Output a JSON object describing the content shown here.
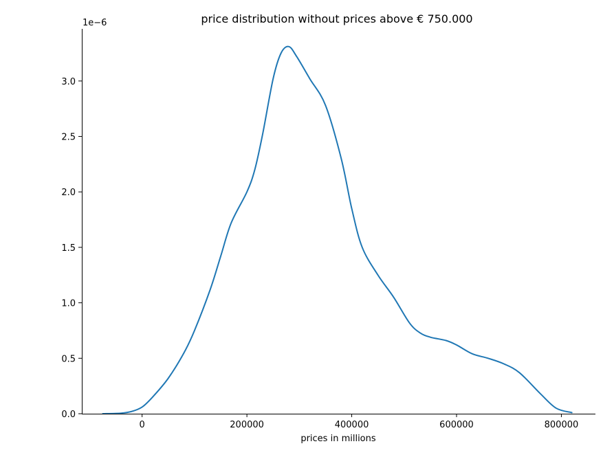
{
  "chart_data": {
    "type": "line",
    "title": "price distribution without prices above € 750.000",
    "xlabel": "prices in millions",
    "ylabel": "",
    "y_offset_label": "1e−6",
    "xlim": [
      -115000,
      865000
    ],
    "ylim": [
      0,
      3.47
    ],
    "x_ticks": [
      0,
      200000,
      400000,
      600000,
      800000
    ],
    "x_tick_labels": [
      "0",
      "200000",
      "400000",
      "600000",
      "800000"
    ],
    "y_ticks": [
      0.0,
      0.5,
      1.0,
      1.5,
      2.0,
      2.5,
      3.0
    ],
    "y_tick_labels": [
      "0.0",
      "0.5",
      "1.0",
      "1.5",
      "2.0",
      "2.5",
      "3.0"
    ],
    "grid": false,
    "legend": "none",
    "series_color": "#1f77b4",
    "series": [
      {
        "x": [
          -75000,
          -40000,
          -20000,
          0,
          20000,
          50000,
          80000,
          100000,
          130000,
          150000,
          170000,
          200000,
          215000,
          230000,
          250000,
          265000,
          280000,
          295000,
          320000,
          350000,
          380000,
          400000,
          420000,
          450000,
          480000,
          510000,
          530000,
          550000,
          580000,
          600000,
          630000,
          660000,
          690000,
          720000,
          760000,
          790000,
          820000
        ],
        "y": [
          0.0,
          0.005,
          0.02,
          0.06,
          0.15,
          0.32,
          0.55,
          0.75,
          1.12,
          1.42,
          1.72,
          2.0,
          2.2,
          2.52,
          3.02,
          3.25,
          3.31,
          3.22,
          3.02,
          2.78,
          2.3,
          1.85,
          1.5,
          1.25,
          1.05,
          0.82,
          0.73,
          0.69,
          0.66,
          0.62,
          0.54,
          0.5,
          0.45,
          0.37,
          0.18,
          0.05,
          0.01
        ]
      }
    ]
  }
}
